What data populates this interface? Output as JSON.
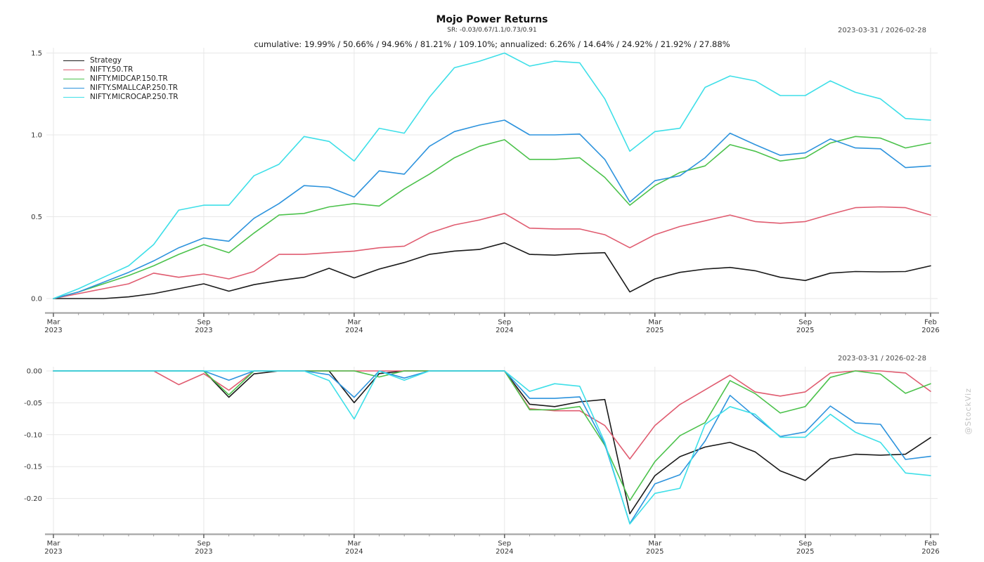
{
  "header": {
    "title": "Mojo Power Returns",
    "subtitle": "SR: -0.03/0.67/1.1/0.73/0.91",
    "stats_line": "cumulative: 19.99% / 50.66% / 94.96% / 81.21% / 109.10%; annualized: 6.26% / 14.64% / 24.92% / 21.92% / 27.88%",
    "date_range": "2023-03-31 / 2026-02-28"
  },
  "watermark": "@StockViz",
  "chart_data": [
    {
      "type": "line",
      "panel": "cumulative_returns",
      "ylim": [
        -0.086,
        1.532
      ],
      "grid": true,
      "legend_position": "upper-left",
      "y_ticks": [
        {
          "v": 0.0,
          "label": "0.0"
        },
        {
          "v": 0.5,
          "label": "0.5"
        },
        {
          "v": 1.0,
          "label": "1.0"
        },
        {
          "v": 1.5,
          "label": "1.5"
        }
      ],
      "x_ticks": [
        {
          "i": 0,
          "line1": "Mar",
          "line2": "2023"
        },
        {
          "i": 6,
          "line1": "Sep",
          "line2": "2023"
        },
        {
          "i": 12,
          "line1": "Mar",
          "line2": "2024"
        },
        {
          "i": 18,
          "line1": "Sep",
          "line2": "2024"
        },
        {
          "i": 24,
          "line1": "Mar",
          "line2": "2025"
        },
        {
          "i": 30,
          "line1": "Sep",
          "line2": "2025"
        },
        {
          "i": 35,
          "line1": "Feb",
          "line2": "2026"
        }
      ],
      "x_months": [
        "2023-03",
        "2023-04",
        "2023-05",
        "2023-06",
        "2023-07",
        "2023-08",
        "2023-09",
        "2023-10",
        "2023-11",
        "2023-12",
        "2024-01",
        "2024-02",
        "2024-03",
        "2024-04",
        "2024-05",
        "2024-06",
        "2024-07",
        "2024-08",
        "2024-09",
        "2024-10",
        "2024-11",
        "2024-12",
        "2025-01",
        "2025-02",
        "2025-03",
        "2025-04",
        "2025-05",
        "2025-06",
        "2025-07",
        "2025-08",
        "2025-09",
        "2025-10",
        "2025-11",
        "2025-12",
        "2026-01",
        "2026-02"
      ],
      "series": [
        {
          "name": "Strategy",
          "color": "#1a1a1a",
          "values": [
            0.0,
            0.0,
            0.0,
            0.01,
            0.03,
            0.06,
            0.09,
            0.045,
            0.085,
            0.11,
            0.13,
            0.185,
            0.126,
            0.18,
            0.22,
            0.27,
            0.29,
            0.3,
            0.34,
            0.27,
            0.265,
            0.275,
            0.28,
            0.04,
            0.12,
            0.16,
            0.18,
            0.19,
            0.17,
            0.13,
            0.11,
            0.155,
            0.165,
            0.163,
            0.165,
            0.2
          ]
        },
        {
          "name": "NIFTY.50.TR",
          "color": "#e05c70",
          "values": [
            0.0,
            0.03,
            0.06,
            0.09,
            0.155,
            0.13,
            0.15,
            0.12,
            0.165,
            0.27,
            0.27,
            0.28,
            0.29,
            0.31,
            0.32,
            0.4,
            0.45,
            0.48,
            0.52,
            0.43,
            0.425,
            0.425,
            0.39,
            0.31,
            0.39,
            0.44,
            0.475,
            0.51,
            0.47,
            0.46,
            0.47,
            0.515,
            0.555,
            0.56,
            0.555,
            0.51
          ]
        },
        {
          "name": "NIFTY.MIDCAP.150.TR",
          "color": "#4cc24c",
          "values": [
            0.0,
            0.04,
            0.09,
            0.14,
            0.2,
            0.27,
            0.33,
            0.28,
            0.4,
            0.51,
            0.52,
            0.56,
            0.58,
            0.565,
            0.67,
            0.76,
            0.86,
            0.93,
            0.97,
            0.85,
            0.85,
            0.86,
            0.74,
            0.57,
            0.69,
            0.77,
            0.81,
            0.94,
            0.9,
            0.84,
            0.86,
            0.95,
            0.99,
            0.98,
            0.92,
            0.95
          ]
        },
        {
          "name": "NIFTY.SMALLCAP.250.TR",
          "color": "#2d93dd",
          "values": [
            0.0,
            0.04,
            0.1,
            0.16,
            0.23,
            0.31,
            0.37,
            0.35,
            0.49,
            0.58,
            0.69,
            0.68,
            0.62,
            0.78,
            0.76,
            0.93,
            1.02,
            1.06,
            1.09,
            1.0,
            1.0,
            1.005,
            0.85,
            0.59,
            0.72,
            0.75,
            0.86,
            1.01,
            0.94,
            0.875,
            0.89,
            0.975,
            0.92,
            0.915,
            0.8,
            0.81
          ]
        },
        {
          "name": "NIFTY.MICROCAP.250.TR",
          "color": "#3edfe8",
          "values": [
            0.0,
            0.06,
            0.13,
            0.2,
            0.33,
            0.54,
            0.57,
            0.57,
            0.75,
            0.82,
            0.99,
            0.96,
            0.84,
            1.04,
            1.01,
            1.23,
            1.41,
            1.45,
            1.5,
            1.42,
            1.45,
            1.44,
            1.22,
            0.9,
            1.02,
            1.04,
            1.29,
            1.36,
            1.33,
            1.24,
            1.24,
            1.33,
            1.26,
            1.22,
            1.1,
            1.09
          ]
        }
      ]
    },
    {
      "type": "line",
      "panel": "drawdown",
      "derive": "drawdown",
      "source_panel": 0,
      "ylim": [
        -0.2555,
        0.0066
      ],
      "grid": true,
      "y_ticks": [
        {
          "v": 0.0,
          "label": "0.00"
        },
        {
          "v": -0.05,
          "label": "-0.05"
        },
        {
          "v": -0.1,
          "label": "-0.10"
        },
        {
          "v": -0.15,
          "label": "-0.15"
        },
        {
          "v": -0.2,
          "label": "-0.20"
        }
      ],
      "x_ticks": [
        {
          "i": 0,
          "line1": "Mar",
          "line2": "2023"
        },
        {
          "i": 6,
          "line1": "Sep",
          "line2": "2023"
        },
        {
          "i": 12,
          "line1": "Mar",
          "line2": "2024"
        },
        {
          "i": 18,
          "line1": "Sep",
          "line2": "2024"
        },
        {
          "i": 24,
          "line1": "Mar",
          "line2": "2025"
        },
        {
          "i": 30,
          "line1": "Sep",
          "line2": "2025"
        },
        {
          "i": 35,
          "line1": "Feb",
          "line2": "2026"
        }
      ]
    }
  ]
}
